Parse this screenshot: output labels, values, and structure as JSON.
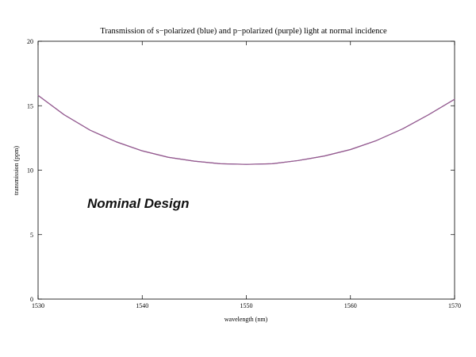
{
  "chart_data": {
    "type": "line",
    "title": "Transmission of s−polarized (blue) and p−polarized (purple) light at normal incidence",
    "xlabel": "wavelength (nm)",
    "ylabel": "transmission (ppm)",
    "xlim": [
      1530,
      1570
    ],
    "ylim": [
      0,
      20
    ],
    "xticks": [
      1530,
      1540,
      1550,
      1560,
      1570
    ],
    "yticks": [
      0,
      5,
      10,
      15,
      20
    ],
    "grid": false,
    "legend": "none",
    "annotation": "Nominal Design",
    "series": [
      {
        "color": "#6a6cc9",
        "x": [
          1530,
          1532.5,
          1535,
          1537.5,
          1540,
          1542.5,
          1545,
          1547.5,
          1550,
          1552.5,
          1555,
          1557.5,
          1560,
          1562.5,
          1565,
          1567.5,
          1570
        ],
        "y": [
          15.8,
          14.3,
          13.1,
          12.2,
          11.5,
          11.0,
          10.7,
          10.5,
          10.45,
          10.5,
          10.75,
          11.1,
          11.6,
          12.3,
          13.2,
          14.3,
          15.5
        ]
      },
      {
        "color": "#9a5a8a",
        "x": [
          1530,
          1532.5,
          1535,
          1537.5,
          1540,
          1542.5,
          1545,
          1547.5,
          1550,
          1552.5,
          1555,
          1557.5,
          1560,
          1562.5,
          1565,
          1567.5,
          1570
        ],
        "y": [
          15.8,
          14.3,
          13.1,
          12.2,
          11.5,
          11.0,
          10.7,
          10.5,
          10.45,
          10.5,
          10.75,
          11.1,
          11.6,
          12.3,
          13.2,
          14.3,
          15.5
        ]
      }
    ]
  }
}
